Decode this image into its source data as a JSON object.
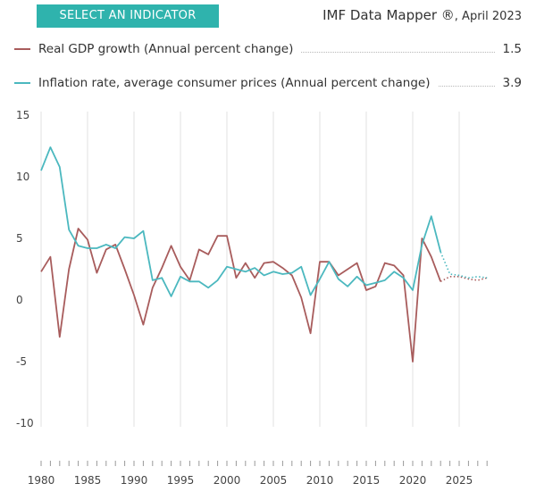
{
  "header": {
    "select_indicator_label": "SELECT AN INDICATOR",
    "brand": "IMF Data Mapper ®",
    "date": ", April 2023"
  },
  "legend": [
    {
      "label": "Real GDP growth (Annual percent change)",
      "value": "1.5",
      "color": "#a85c5c"
    },
    {
      "label": "Inflation rate, average consumer prices (Annual percent change)",
      "value": "3.9",
      "color": "#4bb8bf"
    }
  ],
  "chart_data": {
    "type": "line",
    "title": "",
    "xlabel": "",
    "ylabel": "",
    "xlim": [
      1980,
      2028
    ],
    "ylim": [
      -10,
      15
    ],
    "x_ticks": [
      1980,
      1985,
      1990,
      1995,
      2000,
      2005,
      2010,
      2015,
      2020,
      2025
    ],
    "y_ticks": [
      15,
      10,
      5,
      0,
      -5,
      -10
    ],
    "grid": "vertical",
    "legend_position": "top",
    "series": [
      {
        "name": "Real GDP growth (Annual percent change)",
        "color": "#a85c5c",
        "x": [
          1980,
          1981,
          1982,
          1983,
          1984,
          1985,
          1986,
          1987,
          1988,
          1989,
          1990,
          1991,
          1992,
          1993,
          1994,
          1995,
          1996,
          1997,
          1998,
          1999,
          2000,
          2001,
          2002,
          2003,
          2004,
          2005,
          2006,
          2007,
          2008,
          2009,
          2010,
          2011,
          2012,
          2013,
          2014,
          2015,
          2016,
          2017,
          2018,
          2019,
          2020,
          2021,
          2022,
          2023
        ],
        "values": [
          2.3,
          3.5,
          -3.0,
          2.5,
          5.8,
          4.9,
          2.2,
          4.1,
          4.5,
          2.5,
          0.4,
          -2.0,
          1.0,
          2.6,
          4.4,
          2.7,
          1.6,
          4.1,
          3.7,
          5.2,
          5.2,
          1.8,
          3.0,
          1.8,
          3.0,
          3.1,
          2.6,
          2.0,
          0.2,
          -2.7,
          3.1,
          3.1,
          2.0,
          2.5,
          3.0,
          0.8,
          1.1,
          3.0,
          2.8,
          2.0,
          -5.0,
          5.0,
          3.5,
          1.5
        ],
        "projection": {
          "x": [
            2023,
            2024,
            2025,
            2026,
            2027,
            2028
          ],
          "values": [
            1.5,
            1.9,
            1.9,
            1.7,
            1.6,
            1.8
          ]
        }
      },
      {
        "name": "Inflation rate, average consumer prices (Annual percent change)",
        "color": "#4bb8bf",
        "x": [
          1980,
          1981,
          1982,
          1983,
          1984,
          1985,
          1986,
          1987,
          1988,
          1989,
          1990,
          1991,
          1992,
          1993,
          1994,
          1995,
          1996,
          1997,
          1998,
          1999,
          2000,
          2001,
          2002,
          2003,
          2004,
          2005,
          2006,
          2007,
          2008,
          2009,
          2010,
          2011,
          2012,
          2013,
          2014,
          2015,
          2016,
          2017,
          2018,
          2019,
          2020,
          2021,
          2022,
          2023
        ],
        "values": [
          10.5,
          12.4,
          10.8,
          5.7,
          4.4,
          4.2,
          4.2,
          4.5,
          4.2,
          5.1,
          5.0,
          5.6,
          1.6,
          1.8,
          0.3,
          1.9,
          1.5,
          1.5,
          1.0,
          1.6,
          2.7,
          2.5,
          2.3,
          2.6,
          2.0,
          2.3,
          2.1,
          2.2,
          2.7,
          0.4,
          1.7,
          3.1,
          1.7,
          1.1,
          1.9,
          1.2,
          1.4,
          1.6,
          2.3,
          1.8,
          0.8,
          4.5,
          6.8,
          3.9
        ],
        "projection": {
          "x": [
            2023,
            2024,
            2025,
            2026,
            2027,
            2028
          ],
          "values": [
            3.9,
            2.1,
            2.0,
            1.8,
            1.9,
            1.8
          ]
        }
      }
    ]
  }
}
